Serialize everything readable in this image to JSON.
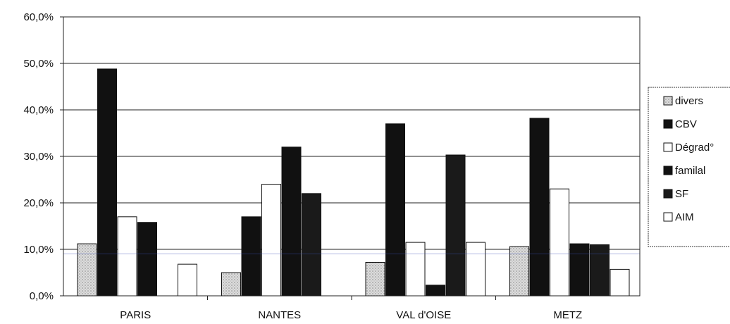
{
  "chart_data": {
    "type": "bar",
    "categories": [
      "PARIS",
      "NANTES",
      "VAL d'OISE",
      "METZ"
    ],
    "series": [
      {
        "name": "divers",
        "values": [
          11.2,
          5.0,
          7.2,
          10.6
        ],
        "color": "#d6d6d6",
        "pattern": "dotted"
      },
      {
        "name": "CBV",
        "values": [
          48.8,
          17.0,
          37.0,
          38.2
        ],
        "color": "#111111"
      },
      {
        "name": "Dégrad°",
        "values": [
          17.0,
          24.0,
          11.5,
          23.0
        ],
        "color": "#ffffff"
      },
      {
        "name": "familal",
        "values": [
          15.8,
          32.0,
          2.3,
          11.2
        ],
        "color": "#111111"
      },
      {
        "name": "SF",
        "values": [
          null,
          22.0,
          30.3,
          11.0
        ],
        "color": "#1a1a1a"
      },
      {
        "name": "AIM",
        "values": [
          6.8,
          null,
          11.5,
          5.7
        ],
        "color": "#ffffff"
      }
    ],
    "y_ticks": [
      "0,0%",
      "10,0%",
      "20,0%",
      "30,0%",
      "40,0%",
      "50,0%",
      "60,0%"
    ],
    "ylim": [
      0,
      60
    ],
    "grid": true,
    "legend_position": "right",
    "xlabel": "",
    "ylabel": "",
    "title": ""
  }
}
